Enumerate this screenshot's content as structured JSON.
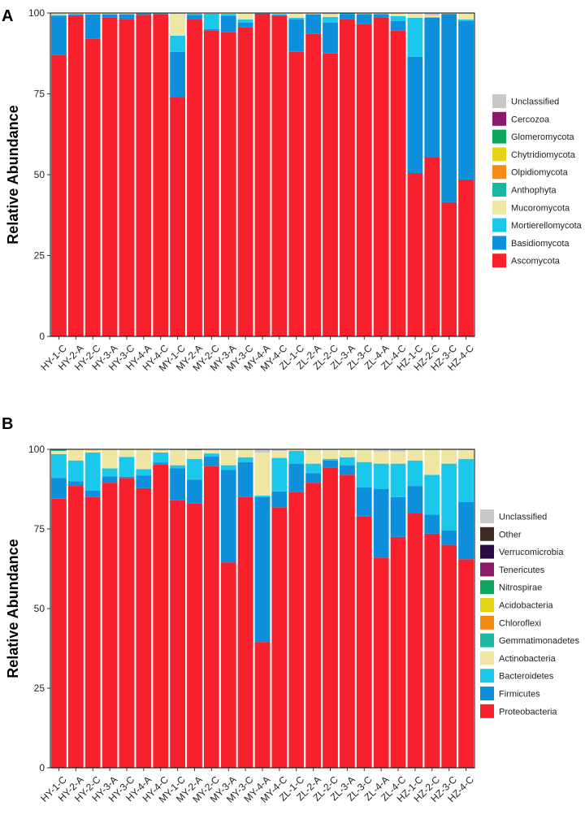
{
  "chart_data": [
    {
      "type": "bar",
      "stacked": true,
      "panel_label": "A",
      "ylabel": "Relative Abundance",
      "xlabel": "",
      "ylim": [
        0,
        100
      ],
      "yticks": [
        "0",
        "25",
        "50",
        "75",
        "100"
      ],
      "categories": [
        "HY-1-C",
        "HY-2-A",
        "HY-2-C",
        "HY-3-A",
        "HY-3-C",
        "HY-4-A",
        "HY-4-C",
        "MY-1-C",
        "MY-2-A",
        "MY-2-C",
        "MY-3-A",
        "MY-3-C",
        "MY-4-A",
        "MY-4-C",
        "ZL-1-C",
        "ZL-2-A",
        "ZL-2-C",
        "ZL-3-A",
        "ZL-3-C",
        "ZL-4-A",
        "ZL-4-C",
        "HZ-1-C",
        "HZ-2-C",
        "HZ-3-C",
        "HZ-4-C"
      ],
      "legend_order": [
        "Unclassified",
        "Cercozoa",
        "Glomeromycota",
        "Chytridiomycota",
        "Olpidiomycota",
        "Anthophyta",
        "Mucoromycota",
        "Mortierellomycota",
        "Basidiomycota",
        "Ascomycota"
      ],
      "series": [
        {
          "name": "Ascomycota",
          "color": "#F8202C",
          "values": [
            87,
            99,
            92,
            98.5,
            98,
            99.4,
            99.6,
            74,
            98.2,
            94.5,
            94,
            95.5,
            99.8,
            99,
            88,
            93.5,
            87.5,
            98.2,
            96.5,
            98.5,
            94.5,
            50.5,
            55.5,
            41.5,
            48.5
          ]
        },
        {
          "name": "Basidiomycota",
          "color": "#0D8FDB",
          "values": [
            12,
            0.6,
            7.5,
            1,
            1.5,
            0.4,
            0.2,
            14,
            1.2,
            0.5,
            5,
            1.5,
            0,
            0.4,
            10,
            6,
            9.5,
            1.5,
            3,
            1,
            3,
            36,
            43,
            58.2,
            49
          ]
        },
        {
          "name": "Mortierellomycota",
          "color": "#19C8EA",
          "values": [
            0.4,
            0.1,
            0.2,
            0.2,
            0.2,
            0.1,
            0.1,
            5,
            0.4,
            4.8,
            0.7,
            1,
            0.1,
            0.3,
            0.5,
            0.2,
            1.8,
            0.2,
            0.3,
            0.3,
            1.5,
            12,
            0.2,
            0.1,
            0.5
          ]
        },
        {
          "name": "Mucoromycota",
          "color": "#EFE6A3",
          "values": [
            0.5,
            0.2,
            0.2,
            0.2,
            0.2,
            0.1,
            0.1,
            6.8,
            0.2,
            0.1,
            0.2,
            2,
            0.1,
            0.2,
            1.4,
            0.2,
            0.8,
            0.1,
            0.2,
            0.2,
            1,
            1.3,
            0.5,
            0.1,
            1.9
          ]
        },
        {
          "name": "Anthophyta",
          "color": "#18B8A2",
          "values": [
            0,
            0,
            0,
            0,
            0,
            0,
            0,
            0,
            0,
            0,
            0,
            0,
            0,
            0,
            0,
            0,
            0,
            0,
            0,
            0,
            0,
            0,
            0,
            0,
            0
          ]
        },
        {
          "name": "Olpidiomycota",
          "color": "#F58B14",
          "values": [
            0,
            0,
            0,
            0,
            0,
            0,
            0,
            0,
            0,
            0,
            0,
            0,
            0,
            0,
            0,
            0,
            0,
            0,
            0,
            0,
            0,
            0,
            0,
            0,
            0
          ]
        },
        {
          "name": "Chytridiomycota",
          "color": "#E4D412",
          "values": [
            0,
            0,
            0,
            0,
            0,
            0,
            0,
            0,
            0,
            0,
            0,
            0,
            0,
            0,
            0,
            0,
            0,
            0,
            0,
            0,
            0,
            0,
            0,
            0,
            0
          ]
        },
        {
          "name": "Glomeromycota",
          "color": "#10A55C",
          "values": [
            0.1,
            0,
            0,
            0,
            0,
            0,
            0,
            0,
            0,
            0,
            0,
            0,
            0,
            0,
            0,
            0,
            0,
            0,
            0,
            0,
            0,
            0,
            0,
            0,
            0
          ]
        },
        {
          "name": "Cercozoa",
          "color": "#8A1A6C",
          "values": [
            0,
            0,
            0,
            0,
            0,
            0,
            0,
            0,
            0,
            0,
            0,
            0,
            0,
            0,
            0,
            0,
            0,
            0,
            0,
            0,
            0,
            0,
            0,
            0,
            0
          ]
        },
        {
          "name": "Unclassified",
          "color": "#C8C8C8",
          "values": [
            0,
            0,
            0,
            0,
            0,
            0,
            0,
            0.2,
            0,
            0.1,
            0.1,
            0,
            0,
            0.1,
            0.1,
            0.1,
            0.4,
            0,
            0,
            0,
            0,
            0.2,
            0.8,
            0.1,
            0.1
          ]
        }
      ]
    },
    {
      "type": "bar",
      "stacked": true,
      "panel_label": "B",
      "ylabel": "Relative Abundance",
      "xlabel": "",
      "ylim": [
        0,
        100
      ],
      "yticks": [
        "0",
        "25",
        "50",
        "75",
        "100"
      ],
      "categories": [
        "HY-1-C",
        "HY-2-A",
        "HY-2-C",
        "HY-3-A",
        "HY-3-C",
        "HY-4-A",
        "HY-4-C",
        "MY-1-C",
        "MY-2-A",
        "MY-2-C",
        "MY-3-A",
        "MY-3-C",
        "MY-4-A",
        "MY-4-C",
        "ZL-1-C",
        "ZL-2-A",
        "ZL-2-C",
        "ZL-3-A",
        "ZL-3-C",
        "ZL-4-A",
        "ZL-4-C",
        "HZ-1-C",
        "HZ-2-C",
        "HZ-3-C",
        "HZ-4-C"
      ],
      "legend_order": [
        "Unclassified",
        "Other",
        "Verrucomicrobia",
        "Tenericutes",
        "Nitrospirae",
        "Acidobacteria",
        "Chloroflexi",
        "Gemmatimonadetes",
        "Actinobacteria",
        "Bacteroidetes",
        "Firmicutes",
        "Proteobacteria"
      ],
      "series": [
        {
          "name": "Proteobacteria",
          "color": "#F8202C",
          "values": [
            84.5,
            88.5,
            85,
            89.5,
            91,
            87.8,
            95.2,
            84,
            83,
            94.7,
            64.5,
            85,
            39.5,
            81.8,
            86.5,
            89.5,
            94.3,
            92,
            79,
            66,
            72.5,
            80,
            73.5,
            70,
            65.5
          ]
        },
        {
          "name": "Firmicutes",
          "color": "#0D8FDB",
          "values": [
            6.5,
            1.5,
            2,
            2,
            0.4,
            4,
            0.6,
            10,
            7.5,
            3,
            29,
            11,
            45.5,
            5,
            9,
            3,
            2.2,
            3,
            9,
            21.5,
            12.5,
            8.5,
            6,
            4.5,
            18
          ]
        },
        {
          "name": "Bacteroidetes",
          "color": "#19C8EA",
          "values": [
            7.5,
            6.5,
            12,
            2.5,
            6.2,
            2,
            3.2,
            1,
            6.5,
            1,
            1.5,
            1.5,
            0.5,
            10.5,
            4,
            3,
            0.5,
            2.5,
            8,
            8,
            10.5,
            8,
            12.5,
            21,
            13.5
          ]
        },
        {
          "name": "Actinobacteria",
          "color": "#EFE6A3",
          "values": [
            1,
            3.3,
            0.8,
            5.8,
            2.2,
            6,
            0.8,
            4.7,
            2.7,
            1.1,
            4.7,
            2.4,
            13.5,
            2.2,
            0.4,
            4.2,
            2.7,
            2.3,
            3.8,
            3.8,
            3.8,
            3.2,
            7.8,
            4.3,
            2.7
          ]
        },
        {
          "name": "Gemmatimonadetes",
          "color": "#18B8A2",
          "values": [
            0.2,
            0,
            0,
            0,
            0,
            0,
            0,
            0,
            0.1,
            0,
            0,
            0,
            0,
            0,
            0,
            0,
            0,
            0,
            0,
            0,
            0,
            0,
            0,
            0,
            0
          ]
        },
        {
          "name": "Chloroflexi",
          "color": "#F58B14",
          "values": [
            0,
            0,
            0,
            0,
            0,
            0,
            0,
            0,
            0,
            0,
            0,
            0,
            0,
            0,
            0,
            0,
            0,
            0,
            0,
            0,
            0,
            0,
            0,
            0,
            0
          ]
        },
        {
          "name": "Acidobacteria",
          "color": "#E4D412",
          "values": [
            0,
            0,
            0,
            0,
            0,
            0,
            0,
            0,
            0,
            0,
            0,
            0,
            0,
            0,
            0,
            0,
            0,
            0,
            0,
            0,
            0,
            0,
            0,
            0,
            0
          ]
        },
        {
          "name": "Nitrospirae",
          "color": "#10A55C",
          "values": [
            0.2,
            0,
            0,
            0,
            0,
            0,
            0,
            0,
            0.1,
            0,
            0,
            0,
            0,
            0,
            0,
            0,
            0,
            0,
            0,
            0,
            0,
            0,
            0,
            0,
            0
          ]
        },
        {
          "name": "Tenericutes",
          "color": "#8A1A6C",
          "values": [
            0,
            0,
            0,
            0,
            0,
            0,
            0,
            0,
            0,
            0,
            0,
            0,
            0,
            0,
            0,
            0,
            0,
            0,
            0,
            0,
            0,
            0,
            0,
            0,
            0
          ]
        },
        {
          "name": "Verrucomicrobia",
          "color": "#2A0A45",
          "values": [
            0,
            0,
            0,
            0,
            0,
            0,
            0,
            0,
            0,
            0,
            0,
            0,
            0,
            0,
            0,
            0,
            0,
            0,
            0,
            0,
            0,
            0,
            0,
            0,
            0
          ]
        },
        {
          "name": "Other",
          "color": "#3B2A26",
          "values": [
            0,
            0,
            0,
            0,
            0,
            0,
            0,
            0,
            0,
            0,
            0,
            0,
            0,
            0,
            0,
            0,
            0,
            0,
            0,
            0,
            0,
            0,
            0,
            0,
            0
          ]
        },
        {
          "name": "Unclassified",
          "color": "#C8C8C8",
          "values": [
            0.1,
            0.2,
            0.2,
            0.2,
            0.2,
            0.2,
            0.2,
            0.3,
            0.1,
            0.2,
            0.3,
            0.1,
            1,
            0.5,
            0.1,
            0.3,
            0.3,
            0.2,
            0.2,
            0.7,
            0.7,
            0.3,
            0.2,
            0.2,
            0.3
          ]
        }
      ]
    }
  ]
}
